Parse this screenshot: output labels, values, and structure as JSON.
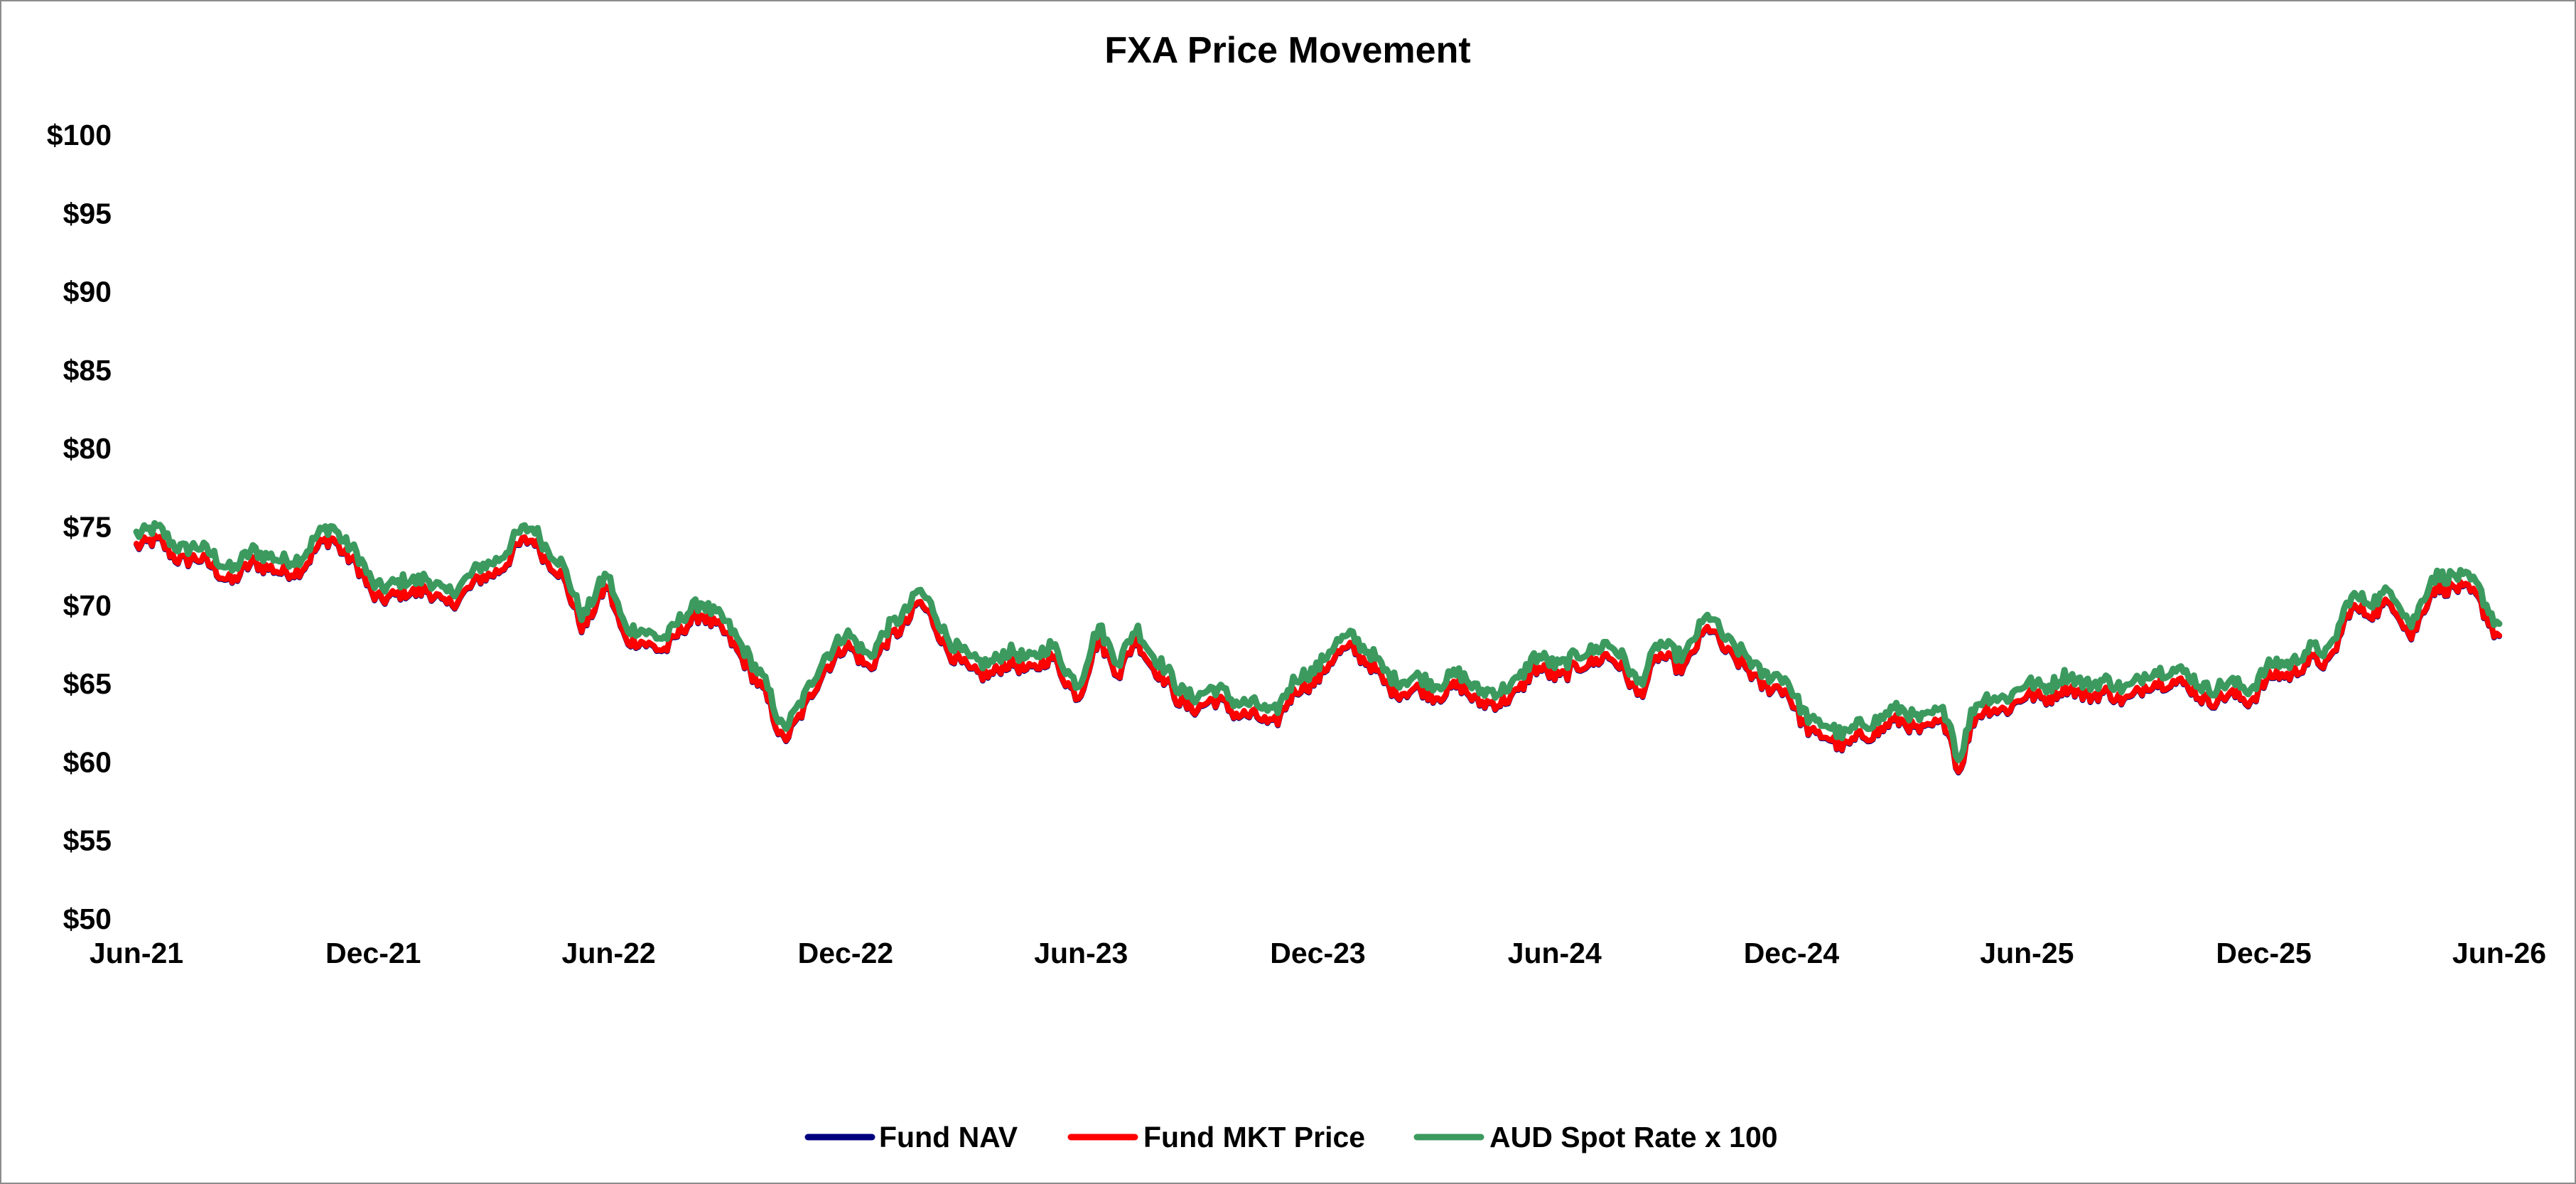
{
  "chart_data": {
    "type": "line",
    "title": "FXA Price Movement",
    "xlabel": "",
    "ylabel": "",
    "ylim": [
      50,
      100
    ],
    "xlim": [
      "2021-06-01",
      "2026-06-01"
    ],
    "y_ticks": [
      {
        "value": 100,
        "label": "$100"
      },
      {
        "value": 95,
        "label": "$95"
      },
      {
        "value": 90,
        "label": "$90"
      },
      {
        "value": 85,
        "label": "$85"
      },
      {
        "value": 80,
        "label": "$80"
      },
      {
        "value": 75,
        "label": "$75"
      },
      {
        "value": 70,
        "label": "$70"
      },
      {
        "value": 65,
        "label": "$65"
      },
      {
        "value": 60,
        "label": "$60"
      },
      {
        "value": 55,
        "label": "$55"
      },
      {
        "value": 50,
        "label": "$50"
      }
    ],
    "x_ticks": [
      {
        "value": "2021-06-01",
        "label": "Jun-21"
      },
      {
        "value": "2021-12-01",
        "label": "Dec-21"
      },
      {
        "value": "2022-06-01",
        "label": "Jun-22"
      },
      {
        "value": "2022-12-01",
        "label": "Dec-22"
      },
      {
        "value": "2023-06-01",
        "label": "Jun-23"
      },
      {
        "value": "2023-12-01",
        "label": "Dec-23"
      },
      {
        "value": "2024-06-01",
        "label": "Jun-24"
      },
      {
        "value": "2024-12-01",
        "label": "Dec-24"
      },
      {
        "value": "2025-06-01",
        "label": "Jun-25"
      },
      {
        "value": "2025-12-01",
        "label": "Dec-25"
      },
      {
        "value": "2026-06-01",
        "label": "Jun-26"
      }
    ],
    "grid": false,
    "legend_position": "bottom",
    "colors": {
      "nav": "#00007f",
      "mkt": "#ff0000",
      "spot": "#3c9a5f"
    },
    "spot_base": [
      [
        "2021-06-01",
        74.8
      ],
      [
        "2021-06-20",
        74.6
      ],
      [
        "2021-07-10",
        73.6
      ],
      [
        "2021-07-31",
        73.4
      ],
      [
        "2021-08-15",
        72.0
      ],
      [
        "2021-08-31",
        73.8
      ],
      [
        "2021-09-20",
        72.6
      ],
      [
        "2021-10-10",
        73.5
      ],
      [
        "2021-10-31",
        75.2
      ],
      [
        "2021-11-15",
        73.5
      ],
      [
        "2021-11-30",
        71.5
      ],
      [
        "2021-12-20",
        71.2
      ],
      [
        "2022-01-10",
        72.0
      ],
      [
        "2022-01-25",
        70.5
      ],
      [
        "2022-02-10",
        71.8
      ],
      [
        "2022-02-28",
        72.5
      ],
      [
        "2022-03-20",
        74.2
      ],
      [
        "2022-04-05",
        75.0
      ],
      [
        "2022-04-25",
        72.5
      ],
      [
        "2022-05-12",
        69.5
      ],
      [
        "2022-05-31",
        71.8
      ],
      [
        "2022-06-14",
        68.8
      ],
      [
        "2022-07-01",
        68.0
      ],
      [
        "2022-07-15",
        68.2
      ],
      [
        "2022-08-01",
        69.3
      ],
      [
        "2022-08-12",
        70.5
      ],
      [
        "2022-08-31",
        68.6
      ],
      [
        "2022-09-15",
        67.3
      ],
      [
        "2022-09-30",
        64.8
      ],
      [
        "2022-10-13",
        62.3
      ],
      [
        "2022-10-31",
        64.0
      ],
      [
        "2022-11-15",
        67.0
      ],
      [
        "2022-12-01",
        68.0
      ],
      [
        "2022-12-20",
        67.0
      ],
      [
        "2023-01-10",
        69.0
      ],
      [
        "2023-01-26",
        71.0
      ],
      [
        "2023-02-15",
        68.5
      ],
      [
        "2023-03-08",
        66.2
      ],
      [
        "2023-03-31",
        66.8
      ],
      [
        "2023-04-20",
        66.8
      ],
      [
        "2023-05-10",
        67.2
      ],
      [
        "2023-05-31",
        65.0
      ],
      [
        "2023-06-15",
        68.6
      ],
      [
        "2023-07-01",
        66.5
      ],
      [
        "2023-07-14",
        68.4
      ],
      [
        "2023-07-31",
        66.6
      ],
      [
        "2023-08-15",
        64.5
      ],
      [
        "2023-09-01",
        64.4
      ],
      [
        "2023-09-20",
        64.5
      ],
      [
        "2023-10-10",
        63.5
      ],
      [
        "2023-10-27",
        63.3
      ],
      [
        "2023-11-15",
        65.2
      ],
      [
        "2023-12-01",
        66.3
      ],
      [
        "2023-12-28",
        68.3
      ],
      [
        "2024-01-20",
        65.8
      ],
      [
        "2024-02-10",
        65.2
      ],
      [
        "2024-03-01",
        65.2
      ],
      [
        "2024-03-20",
        65.4
      ],
      [
        "2024-04-19",
        64.2
      ],
      [
        "2024-05-15",
        66.5
      ],
      [
        "2024-06-01",
        66.4
      ],
      [
        "2024-06-20",
        66.6
      ],
      [
        "2024-07-10",
        67.8
      ],
      [
        "2024-08-05",
        65.2
      ],
      [
        "2024-08-20",
        67.3
      ],
      [
        "2024-09-10",
        67.0
      ],
      [
        "2024-09-30",
        69.4
      ],
      [
        "2024-10-20",
        67.0
      ],
      [
        "2024-11-10",
        65.8
      ],
      [
        "2024-11-28",
        65.0
      ],
      [
        "2024-12-20",
        62.3
      ],
      [
        "2025-01-10",
        62.0
      ],
      [
        "2025-01-30",
        62.3
      ],
      [
        "2025-02-15",
        63.5
      ],
      [
        "2025-03-05",
        62.8
      ],
      [
        "2025-03-20",
        63.2
      ],
      [
        "2025-04-01",
        62.8
      ],
      [
        "2025-04-09",
        60.2
      ],
      [
        "2025-04-20",
        63.5
      ],
      [
        "2025-05-10",
        64.2
      ],
      [
        "2025-06-01",
        64.8
      ],
      [
        "2025-06-30",
        65.3
      ],
      [
        "2025-07-20",
        65.2
      ],
      [
        "2025-08-10",
        64.8
      ],
      [
        "2025-09-01",
        65.4
      ],
      [
        "2025-09-20",
        66.2
      ],
      [
        "2025-10-10",
        65.0
      ],
      [
        "2025-10-31",
        64.8
      ],
      [
        "2025-11-20",
        64.9
      ],
      [
        "2025-12-10",
        66.2
      ],
      [
        "2026-01-05",
        67.0
      ],
      [
        "2026-01-20",
        67.2
      ],
      [
        "2026-02-05",
        70.2
      ],
      [
        "2026-02-20",
        70.5
      ],
      [
        "2026-03-10",
        70.7
      ],
      [
        "2026-03-25",
        69.0
      ],
      [
        "2026-04-10",
        71.5
      ],
      [
        "2026-04-28",
        72.2
      ],
      [
        "2026-05-15",
        71.0
      ],
      [
        "2026-05-31",
        69.0
      ],
      [
        "2026-06-01",
        69.2
      ]
    ],
    "series": [
      {
        "key": "nav",
        "name": "Fund NAV",
        "offset": -0.8
      },
      {
        "key": "mkt",
        "name": "Fund MKT Price",
        "offset": -0.75
      },
      {
        "key": "spot",
        "name": "AUD Spot Rate x 100",
        "offset": 0
      }
    ]
  }
}
